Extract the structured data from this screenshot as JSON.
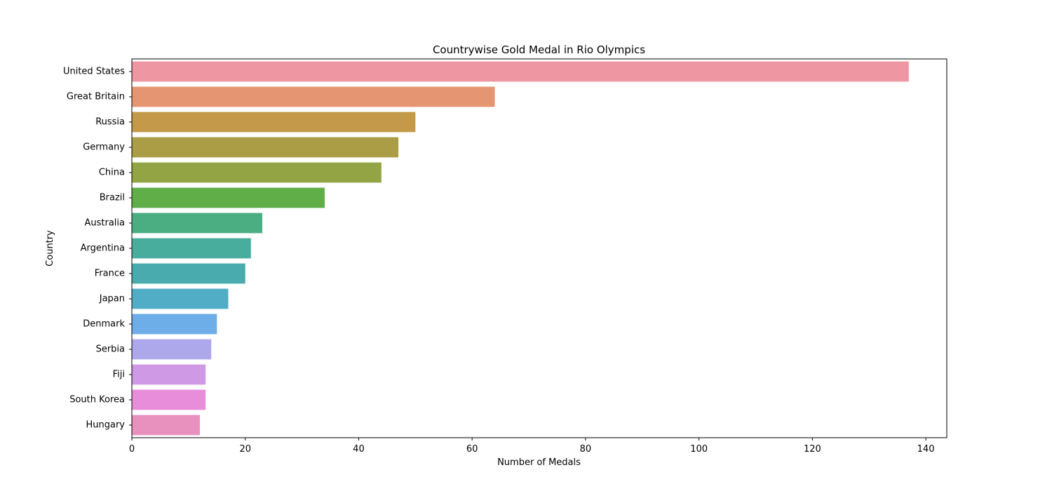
{
  "chart_data": {
    "type": "bar",
    "orientation": "horizontal",
    "title": "Countrywise Gold Medal in Rio Olympics",
    "xlabel": "Number of Medals",
    "ylabel": "Country",
    "xlim": [
      0,
      143.7
    ],
    "xticks": [
      0,
      20,
      40,
      60,
      80,
      100,
      120,
      140
    ],
    "grid": false,
    "categories": [
      "United States",
      "Great Britain",
      "Russia",
      "Germany",
      "China",
      "Brazil",
      "Australia",
      "Argentina",
      "France",
      "Japan",
      "Denmark",
      "Serbia",
      "Fiji",
      "South Korea",
      "Hungary"
    ],
    "values": [
      137,
      64,
      50,
      47,
      44,
      34,
      23,
      21,
      20,
      17,
      15,
      14,
      13,
      13,
      12
    ],
    "colors": [
      "#ee96a1",
      "#e69572",
      "#c49a4a",
      "#aa9d45",
      "#93a444",
      "#5fae47",
      "#4aae82",
      "#49ad9e",
      "#4aabae",
      "#51adc6",
      "#6daee8",
      "#ada8ec",
      "#d099e6",
      "#e78dda",
      "#e891bf"
    ]
  }
}
